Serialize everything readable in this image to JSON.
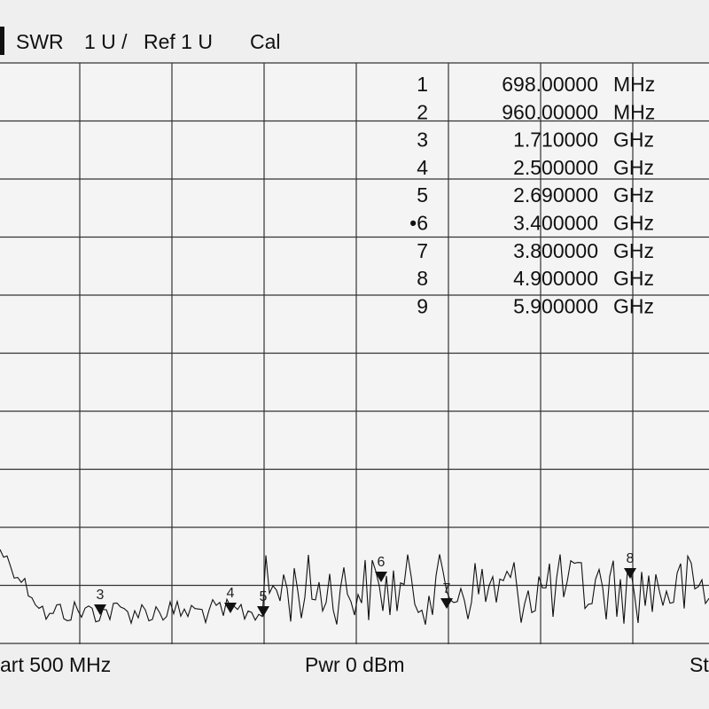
{
  "header": {
    "trace": "SWR",
    "scale": "1 U /",
    "reference": "Ref 1 U",
    "status": "Cal"
  },
  "markers": [
    {
      "number": "1",
      "frequency": "698.00000",
      "unit": "MHz"
    },
    {
      "number": "2",
      "frequency": "960.00000",
      "unit": "MHz"
    },
    {
      "number": "3",
      "frequency": "1.710000",
      "unit": "GHz"
    },
    {
      "number": "4",
      "frequency": "2.500000",
      "unit": "GHz"
    },
    {
      "number": "5",
      "frequency": "2.690000",
      "unit": "GHz"
    },
    {
      "number": "•6",
      "frequency": "3.400000",
      "unit": "GHz"
    },
    {
      "number": "7",
      "frequency": "3.800000",
      "unit": "GHz"
    },
    {
      "number": "8",
      "frequency": "4.900000",
      "unit": "GHz"
    },
    {
      "number": "9",
      "frequency": "5.900000",
      "unit": "GHz"
    }
  ],
  "trace_markers": [
    "3",
    "4",
    "5",
    "6",
    "7",
    "8"
  ],
  "footer": {
    "start": "art 500 MHz",
    "power": "Pwr 0 dBm",
    "stop": "St"
  }
}
